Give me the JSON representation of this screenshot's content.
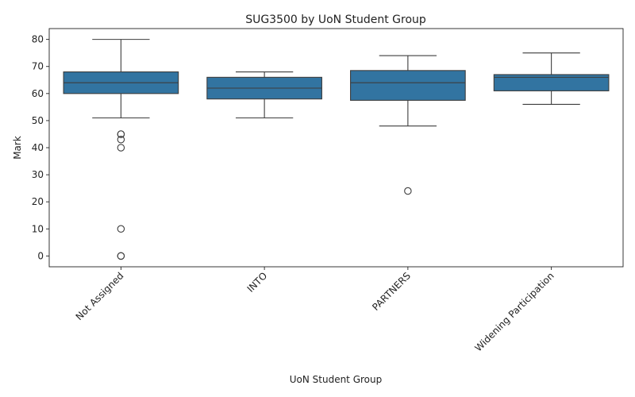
{
  "chart_data": {
    "type": "box",
    "title": "SUG3500 by UoN Student Group",
    "xlabel": "UoN Student Group",
    "ylabel": "Mark",
    "ylim": [
      -4,
      84
    ],
    "yticks": [
      0,
      10,
      20,
      30,
      40,
      50,
      60,
      70,
      80
    ],
    "grid": false,
    "box_color": "#3274a1",
    "line_color": "#3d3d3d",
    "categories": [
      "Not Assigned",
      "INTO",
      "PARTNERS",
      "Widening Participation"
    ],
    "boxes": [
      {
        "category": "Not Assigned",
        "whisker_low": 51,
        "q1": 60,
        "median": 64,
        "q3": 68,
        "whisker_high": 80,
        "outliers": [
          45,
          45,
          43,
          40,
          10,
          0,
          0
        ]
      },
      {
        "category": "INTO",
        "whisker_low": 51,
        "q1": 58,
        "median": 62,
        "q3": 66,
        "whisker_high": 68,
        "outliers": []
      },
      {
        "category": "PARTNERS",
        "whisker_low": 48,
        "q1": 57.5,
        "median": 64,
        "q3": 68.5,
        "whisker_high": 74,
        "outliers": [
          24
        ]
      },
      {
        "category": "Widening Participation",
        "whisker_low": 56,
        "q1": 61,
        "median": 66,
        "q3": 67,
        "whisker_high": 75,
        "outliers": []
      }
    ]
  }
}
